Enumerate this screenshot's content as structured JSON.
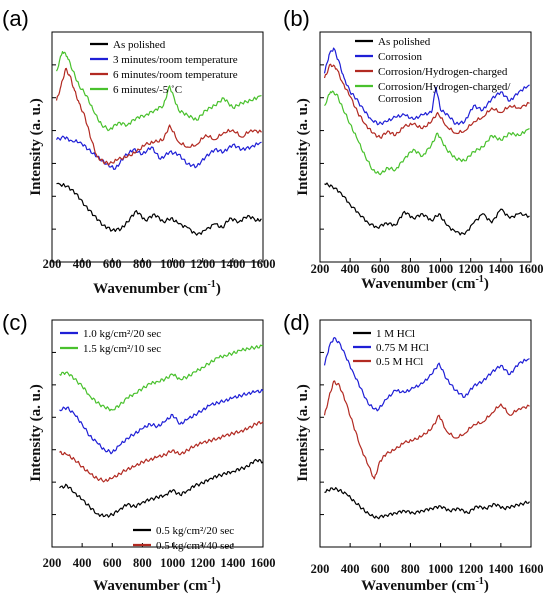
{
  "chart_data": [
    {
      "panel": "(a)",
      "type": "line",
      "xlabel": "Wavenumber (cm",
      "xlabel_sup": "-1",
      "ylabel": "Intensity (a. u.)",
      "xlim": [
        200,
        1600
      ],
      "xticks": [
        "200",
        "400",
        "600",
        "800",
        "1000",
        "1200",
        "1400",
        "1600"
      ],
      "yticks_labeled": false,
      "legend_position": "top-right",
      "series": [
        {
          "name": "As polished",
          "color": "#000000",
          "x": [
            230,
            300,
            360,
            420,
            480,
            540,
            600,
            660,
            700,
            760,
            820,
            880,
            940,
            990,
            1040,
            1100,
            1160,
            1220,
            1280,
            1330,
            1380,
            1440,
            1500,
            1560,
            1590
          ],
          "y": [
            1.0,
            0.95,
            0.8,
            0.55,
            0.35,
            0.15,
            0.05,
            0.08,
            0.22,
            0.45,
            0.25,
            0.38,
            0.22,
            0.3,
            0.18,
            0.1,
            -0.05,
            0.05,
            0.18,
            0.1,
            0.3,
            0.22,
            0.35,
            0.25,
            0.28
          ]
        },
        {
          "name": "3 minutes/room temperature",
          "color": "#1f1fd6",
          "x": [
            230,
            280,
            330,
            390,
            440,
            500,
            560,
            620,
            680,
            740,
            800,
            860,
            920,
            980,
            1040,
            1100,
            1160,
            1220,
            1280,
            1340,
            1400,
            1460,
            1520,
            1590
          ],
          "y": [
            1.9,
            1.95,
            1.88,
            1.85,
            1.7,
            1.55,
            1.4,
            1.3,
            1.55,
            1.7,
            1.6,
            1.75,
            1.5,
            1.65,
            1.6,
            1.4,
            1.35,
            1.55,
            1.7,
            1.65,
            1.8,
            1.7,
            1.75,
            1.85
          ]
        },
        {
          "name": "6 minutes/room temperature",
          "color": "#b22a22",
          "x": [
            230,
            260,
            290,
            320,
            350,
            380,
            420,
            460,
            500,
            540,
            580,
            640,
            700,
            760,
            820,
            880,
            940,
            980,
            1040,
            1100,
            1160,
            1220,
            1280,
            1340,
            1400,
            1460,
            1520,
            1590
          ],
          "y": [
            2.7,
            3.0,
            3.35,
            3.2,
            2.9,
            2.65,
            2.35,
            1.9,
            1.55,
            1.45,
            1.4,
            1.5,
            1.55,
            1.65,
            1.8,
            1.85,
            1.9,
            2.2,
            1.85,
            1.75,
            1.8,
            2.0,
            1.9,
            2.05,
            2.1,
            1.95,
            2.1,
            2.05
          ]
        },
        {
          "name": "6 minutes/-5 ˚C",
          "color": "#49c12d",
          "x": [
            230,
            270,
            300,
            340,
            380,
            430,
            480,
            530,
            580,
            640,
            700,
            760,
            820,
            880,
            940,
            980,
            1040,
            1100,
            1160,
            1220,
            1280,
            1340,
            1400,
            1460,
            1520,
            1590
          ],
          "y": [
            3.3,
            3.7,
            3.6,
            3.3,
            3.0,
            2.8,
            2.45,
            2.2,
            2.1,
            2.25,
            2.2,
            2.35,
            2.4,
            2.5,
            2.6,
            3.0,
            2.5,
            2.4,
            2.3,
            2.5,
            2.6,
            2.75,
            2.55,
            2.65,
            2.7,
            2.8
          ]
        }
      ]
    },
    {
      "panel": "(b)",
      "type": "line",
      "xlabel": "Wavenumber (cm",
      "xlabel_sup": "-1",
      "ylabel": "Intensity (a. u.)",
      "xlim": [
        200,
        1600
      ],
      "xticks": [
        "200",
        "400",
        "600",
        "800",
        "1000",
        "1200",
        "1400",
        "1600"
      ],
      "yticks_labeled": false,
      "legend_position": "top-right",
      "series": [
        {
          "name": "As polished",
          "color": "#000000",
          "x": [
            230,
            280,
            340,
            400,
            460,
            520,
            580,
            640,
            700,
            760,
            820,
            880,
            940,
            990,
            1040,
            1100,
            1160,
            1220,
            1280,
            1340,
            1400,
            1460,
            1520,
            1590
          ],
          "y": [
            1.0,
            0.95,
            0.8,
            0.55,
            0.35,
            0.15,
            0.05,
            0.15,
            0.1,
            0.4,
            0.25,
            0.35,
            0.2,
            0.35,
            0.1,
            -0.05,
            -0.1,
            0.15,
            0.35,
            0.15,
            0.45,
            0.25,
            0.35,
            0.3
          ]
        },
        {
          "name": "Corrosion",
          "color": "#1f1fd6",
          "x": [
            230,
            260,
            290,
            320,
            360,
            400,
            440,
            490,
            540,
            590,
            640,
            700,
            760,
            820,
            880,
            940,
            970,
            1000,
            1050,
            1100,
            1160,
            1220,
            1280,
            1340,
            1400,
            1460,
            1520,
            1590
          ],
          "y": [
            3.4,
            3.8,
            3.95,
            3.7,
            3.3,
            3.0,
            2.85,
            2.6,
            2.4,
            2.3,
            2.35,
            2.45,
            2.5,
            2.4,
            2.5,
            2.55,
            3.1,
            2.6,
            2.5,
            2.3,
            2.35,
            2.7,
            2.6,
            2.85,
            3.0,
            2.8,
            3.0,
            3.15
          ]
        },
        {
          "name": "Corrosion/Hydrogen-charged",
          "color": "#b22a22",
          "x": [
            230,
            270,
            310,
            350,
            400,
            450,
            500,
            550,
            600,
            650,
            700,
            760,
            820,
            880,
            940,
            980,
            1040,
            1100,
            1160,
            1220,
            1280,
            1340,
            1400,
            1460,
            1520,
            1590
          ],
          "y": [
            3.3,
            3.6,
            3.5,
            3.2,
            2.9,
            2.55,
            2.3,
            2.1,
            2.0,
            2.15,
            2.05,
            2.25,
            2.3,
            2.2,
            2.35,
            2.55,
            2.25,
            2.1,
            2.15,
            2.35,
            2.45,
            2.65,
            2.55,
            2.7,
            2.65,
            2.75
          ]
        },
        {
          "name": "Corrosion/Hydrogen-charged/ Corrosion",
          "color": "#49c12d",
          "x": [
            230,
            270,
            310,
            350,
            400,
            450,
            500,
            550,
            600,
            650,
            700,
            760,
            820,
            880,
            940,
            980,
            1040,
            1100,
            1160,
            1220,
            1280,
            1340,
            1400,
            1460,
            1520,
            1590
          ],
          "y": [
            2.7,
            3.0,
            2.95,
            2.65,
            2.3,
            1.95,
            1.6,
            1.3,
            1.2,
            1.35,
            1.3,
            1.55,
            1.75,
            1.6,
            1.85,
            2.1,
            1.75,
            1.55,
            1.5,
            1.7,
            1.8,
            2.05,
            1.95,
            2.1,
            2.05,
            2.2
          ]
        }
      ]
    },
    {
      "panel": "(c)",
      "type": "line",
      "xlabel": "Wavenumber (cm",
      "xlabel_sup": "-1",
      "ylabel": "Intensity (a. u.)",
      "xlim": [
        200,
        1600
      ],
      "xticks": [
        "200",
        "400",
        "600",
        "800",
        "1000",
        "1200",
        "1400",
        "1600"
      ],
      "yticks_labeled": false,
      "legend_position": "top-left and bottom-right",
      "series": [
        {
          "name": "1.0 kg/cm²/20 sec",
          "color": "#1f1fd6",
          "x": [
            250,
            300,
            350,
            400,
            450,
            500,
            550,
            600,
            650,
            700,
            750,
            800,
            850,
            900,
            950,
            1000,
            1050,
            1100,
            1150,
            1200,
            1250,
            1300,
            1350,
            1400,
            1450,
            1500,
            1550,
            1600
          ],
          "y": [
            2.3,
            2.35,
            2.2,
            2.0,
            1.75,
            1.6,
            1.45,
            1.4,
            1.55,
            1.7,
            1.8,
            1.9,
            2.0,
            1.95,
            2.05,
            2.2,
            2.0,
            2.1,
            2.2,
            2.3,
            2.4,
            2.45,
            2.5,
            2.55,
            2.6,
            2.65,
            2.68,
            2.7
          ]
        },
        {
          "name": "1.5 kg/cm²/10 sec",
          "color": "#49c12d",
          "x": [
            250,
            300,
            350,
            400,
            450,
            500,
            550,
            600,
            650,
            700,
            750,
            800,
            850,
            900,
            950,
            1000,
            1050,
            1100,
            1150,
            1200,
            1250,
            1300,
            1350,
            1400,
            1450,
            1500,
            1550,
            1600
          ],
          "y": [
            3.05,
            3.1,
            2.95,
            2.8,
            2.6,
            2.45,
            2.35,
            2.3,
            2.4,
            2.55,
            2.65,
            2.75,
            2.85,
            2.9,
            2.95,
            3.05,
            2.95,
            3.0,
            3.1,
            3.2,
            3.3,
            3.4,
            3.45,
            3.5,
            3.55,
            3.6,
            3.62,
            3.65
          ]
        },
        {
          "name": "0.5 kg/cm²/20 sec",
          "color": "#000000",
          "x": [
            250,
            300,
            350,
            400,
            450,
            500,
            550,
            600,
            650,
            700,
            750,
            800,
            850,
            900,
            950,
            1000,
            1050,
            1100,
            1150,
            1200,
            1250,
            1300,
            1350,
            1400,
            1450,
            1500,
            1550,
            1600
          ],
          "y": [
            0.65,
            0.7,
            0.55,
            0.4,
            0.25,
            0.1,
            0.05,
            0.08,
            0.2,
            0.3,
            0.25,
            0.35,
            0.4,
            0.45,
            0.5,
            0.6,
            0.5,
            0.6,
            0.7,
            0.75,
            0.85,
            0.9,
            0.95,
            1.0,
            1.05,
            1.1,
            1.25,
            1.2
          ]
        },
        {
          "name": "0.5 kg/cm²/40 sec",
          "color": "#b22a22",
          "x": [
            250,
            300,
            350,
            400,
            450,
            500,
            550,
            600,
            650,
            700,
            750,
            800,
            850,
            900,
            950,
            1000,
            1050,
            1100,
            1150,
            1200,
            1250,
            1300,
            1350,
            1400,
            1450,
            1500,
            1550,
            1600
          ],
          "y": [
            1.4,
            1.35,
            1.25,
            1.1,
            0.95,
            0.85,
            0.8,
            0.85,
            0.95,
            1.05,
            1.1,
            1.2,
            1.25,
            1.3,
            1.35,
            1.45,
            1.35,
            1.45,
            1.55,
            1.6,
            1.65,
            1.7,
            1.75,
            1.8,
            1.85,
            1.9,
            2.0,
            2.05
          ]
        }
      ]
    },
    {
      "panel": "(d)",
      "type": "line",
      "xlabel": "Wavenumber (cm",
      "xlabel_sup": "-1",
      "ylabel": "Intensity (a. u.)",
      "xlim": [
        200,
        1600
      ],
      "xticks": [
        "200",
        "400",
        "600",
        "800",
        "1000",
        "1200",
        "1400",
        "1600"
      ],
      "yticks_labeled": false,
      "legend_position": "top-left",
      "series": [
        {
          "name": "1 M HCl",
          "color": "#000000",
          "x": [
            230,
            280,
            330,
            380,
            430,
            480,
            530,
            580,
            640,
            700,
            760,
            820,
            880,
            940,
            1000,
            1060,
            1120,
            1180,
            1240,
            1300,
            1360,
            1420,
            1480,
            1540,
            1590
          ],
          "y": [
            0.6,
            0.7,
            0.65,
            0.55,
            0.4,
            0.25,
            0.1,
            0.05,
            0.1,
            0.15,
            0.2,
            0.15,
            0.2,
            0.25,
            0.3,
            0.2,
            0.25,
            0.15,
            0.3,
            0.25,
            0.35,
            0.25,
            0.3,
            0.35,
            0.4
          ]
        },
        {
          "name": "0.75 M HCl",
          "color": "#1f1fd6",
          "x": [
            230,
            260,
            290,
            330,
            370,
            420,
            470,
            520,
            580,
            640,
            700,
            760,
            820,
            880,
            940,
            990,
            1040,
            1100,
            1160,
            1220,
            1280,
            1340,
            1400,
            1460,
            1520,
            1590
          ],
          "y": [
            3.4,
            3.8,
            4.0,
            3.9,
            3.6,
            3.25,
            2.9,
            2.55,
            2.4,
            2.65,
            2.85,
            2.8,
            2.9,
            3.0,
            3.2,
            3.45,
            3.1,
            2.85,
            2.7,
            2.95,
            3.05,
            3.25,
            3.4,
            3.2,
            3.45,
            3.55
          ]
        },
        {
          "name": "0.5 M HCl",
          "color": "#b22a22",
          "x": [
            230,
            260,
            290,
            330,
            370,
            420,
            470,
            520,
            560,
            600,
            640,
            700,
            760,
            820,
            880,
            940,
            990,
            1040,
            1100,
            1160,
            1220,
            1280,
            1340,
            1400,
            1460,
            1520,
            1590
          ],
          "y": [
            2.3,
            2.7,
            3.05,
            2.95,
            2.6,
            2.1,
            1.6,
            1.2,
            0.9,
            1.3,
            1.45,
            1.55,
            1.7,
            1.75,
            1.85,
            2.0,
            2.3,
            1.95,
            1.8,
            1.9,
            2.1,
            2.15,
            2.35,
            2.55,
            2.3,
            2.45,
            2.5
          ]
        }
      ]
    }
  ]
}
